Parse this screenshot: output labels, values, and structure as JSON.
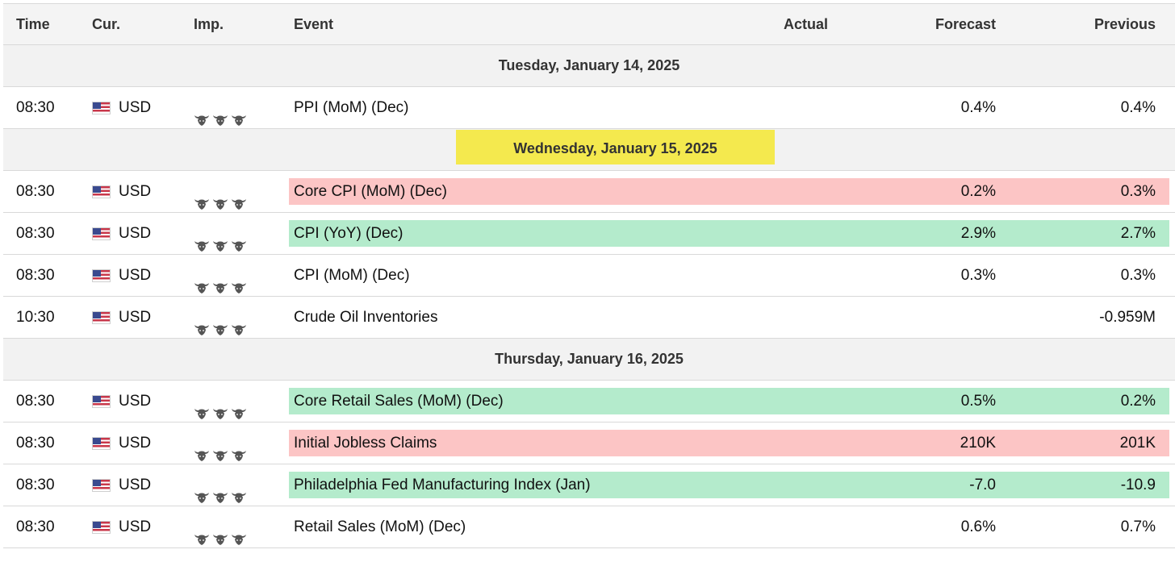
{
  "header": {
    "time": "Time",
    "cur": "Cur.",
    "imp": "Imp.",
    "event": "Event",
    "actual": "Actual",
    "forecast": "Forecast",
    "previous": "Previous"
  },
  "colors": {
    "highlight_yellow": "#f4e94e",
    "negative_red": "#fcc5c5",
    "positive_green": "#b4ebcc",
    "bull_icon": "#555555"
  },
  "icons": {
    "flag": "us-flag-icon",
    "importance": "bull-head-icon"
  },
  "groups": [
    {
      "date": "Tuesday, January 14, 2025",
      "highlighted": false,
      "events": [
        {
          "time": "08:30",
          "currency": "USD",
          "importance": 3,
          "event": "PPI (MoM) (Dec)",
          "actual": "",
          "forecast": "0.4%",
          "previous": "0.4%",
          "highlight": ""
        }
      ]
    },
    {
      "date": "Wednesday, January 15, 2025",
      "highlighted": true,
      "events": [
        {
          "time": "08:30",
          "currency": "USD",
          "importance": 3,
          "event": "Core CPI (MoM) (Dec)",
          "actual": "",
          "forecast": "0.2%",
          "previous": "0.3%",
          "highlight": "red"
        },
        {
          "time": "08:30",
          "currency": "USD",
          "importance": 3,
          "event": "CPI (YoY) (Dec)",
          "actual": "",
          "forecast": "2.9%",
          "previous": "2.7%",
          "highlight": "green"
        },
        {
          "time": "08:30",
          "currency": "USD",
          "importance": 3,
          "event": "CPI (MoM) (Dec)",
          "actual": "",
          "forecast": "0.3%",
          "previous": "0.3%",
          "highlight": ""
        },
        {
          "time": "10:30",
          "currency": "USD",
          "importance": 3,
          "event": "Crude Oil Inventories",
          "actual": "",
          "forecast": "",
          "previous": "-0.959M",
          "highlight": ""
        }
      ]
    },
    {
      "date": "Thursday, January 16, 2025",
      "highlighted": false,
      "events": [
        {
          "time": "08:30",
          "currency": "USD",
          "importance": 3,
          "event": "Core Retail Sales (MoM) (Dec)",
          "actual": "",
          "forecast": "0.5%",
          "previous": "0.2%",
          "highlight": "green"
        },
        {
          "time": "08:30",
          "currency": "USD",
          "importance": 3,
          "event": "Initial Jobless Claims",
          "actual": "",
          "forecast": "210K",
          "previous": "201K",
          "highlight": "red"
        },
        {
          "time": "08:30",
          "currency": "USD",
          "importance": 3,
          "event": "Philadelphia Fed Manufacturing Index (Jan)",
          "actual": "",
          "forecast": "-7.0",
          "previous": "-10.9",
          "highlight": "green"
        },
        {
          "time": "08:30",
          "currency": "USD",
          "importance": 3,
          "event": "Retail Sales (MoM) (Dec)",
          "actual": "",
          "forecast": "0.6%",
          "previous": "0.7%",
          "highlight": ""
        }
      ]
    }
  ]
}
